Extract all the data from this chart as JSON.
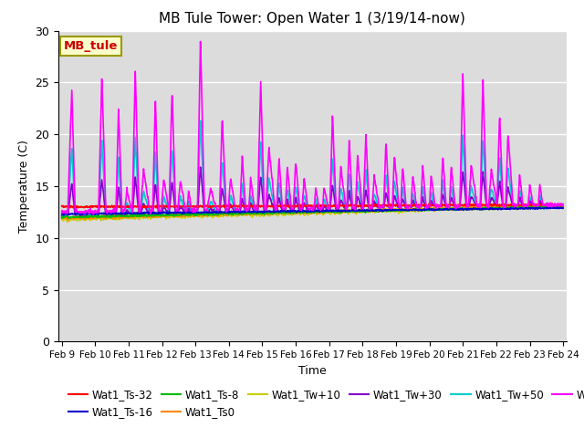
{
  "title": "MB Tule Tower: Open Water 1 (3/19/14-now)",
  "xlabel": "Time",
  "ylabel": "Temperature (C)",
  "ylim": [
    0,
    30
  ],
  "yticks": [
    0,
    5,
    10,
    15,
    20,
    25,
    30
  ],
  "bg_color": "#dcdcdc",
  "series": {
    "Wat1_Ts-32": {
      "color": "#ff0000",
      "lw": 1.2
    },
    "Wat1_Ts-16": {
      "color": "#0000cc",
      "lw": 1.2
    },
    "Wat1_Ts-8": {
      "color": "#00bb00",
      "lw": 1.2
    },
    "Wat1_Ts0": {
      "color": "#ff8800",
      "lw": 1.2
    },
    "Wat1_Tw+10": {
      "color": "#cccc00",
      "lw": 1.2
    },
    "Wat1_Tw+30": {
      "color": "#8800cc",
      "lw": 1.2
    },
    "Wat1_Tw+50": {
      "color": "#00cccc",
      "lw": 1.2
    },
    "Wat1_Tw100": {
      "color": "#ff00ff",
      "lw": 1.2
    }
  },
  "xticklabels": [
    "Feb 9",
    "Feb 10",
    "Feb 11",
    "Feb 12",
    "Feb 13",
    "Feb 14",
    "Feb 15",
    "Feb 16",
    "Feb 17",
    "Feb 18",
    "Feb 19",
    "Feb 20",
    "Feb 21",
    "Feb 22",
    "Feb 23",
    "Feb 24"
  ],
  "legend_box": {
    "text": "MB_tule",
    "facecolor": "#ffffcc",
    "edgecolor": "#999900",
    "textcolor": "#cc0000"
  },
  "legend_fontsize": 8.5,
  "title_fontsize": 11
}
